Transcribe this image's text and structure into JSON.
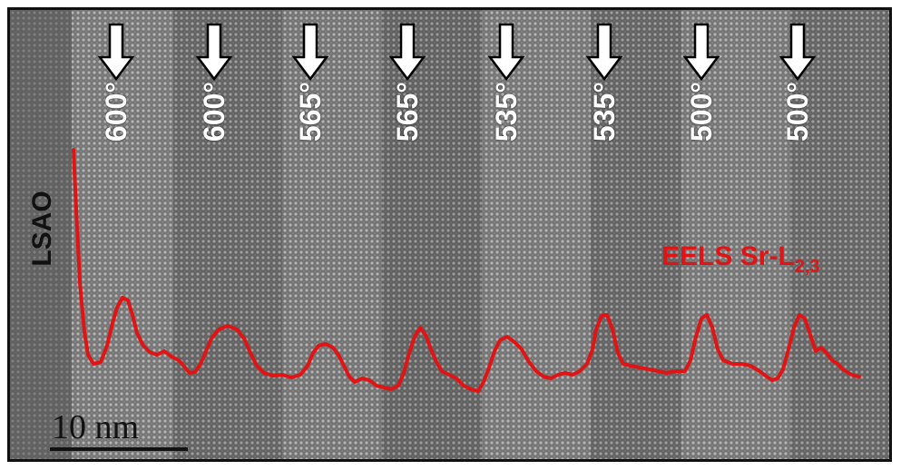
{
  "image": {
    "description_colors": {
      "background_gray": "#777777",
      "lattice_light": "#a8a8a8",
      "lattice_dark": "#5a5a5a",
      "profile_red": "#e01414",
      "arrow_fill": "#ffffff",
      "arrow_outline": "#000000"
    }
  },
  "arrows": [
    {
      "label": "600°"
    },
    {
      "label": "600°"
    },
    {
      "label": "565°"
    },
    {
      "label": "565°"
    },
    {
      "label": "535°"
    },
    {
      "label": "535°"
    },
    {
      "label": "500°"
    },
    {
      "label": "500°"
    }
  ],
  "substrate_label": "LSAO",
  "profile_label": {
    "main": "EELS Sr-L",
    "subscript": "2,3"
  },
  "scalebar": {
    "text": "10 nm"
  }
}
